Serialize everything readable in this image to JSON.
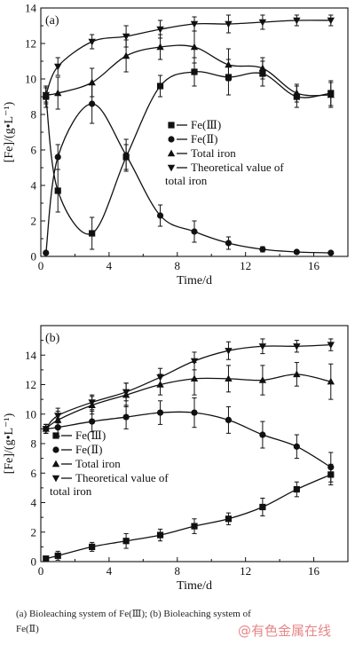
{
  "chart_data": [
    {
      "type": "line",
      "panel_label": "(a)",
      "xlabel": "Time/d",
      "ylabel": "[Fe]/(g•L⁻¹)",
      "xlim": [
        0,
        18
      ],
      "ylim": [
        0,
        14
      ],
      "xticks": [
        0,
        4,
        8,
        12,
        16
      ],
      "yticks": [
        0,
        2,
        4,
        6,
        8,
        10,
        12,
        14
      ],
      "legend_position": "center-right",
      "grid": false,
      "series": [
        {
          "name": "Fe(Ⅲ)",
          "marker": "square",
          "x": [
            0.3,
            1,
            3,
            5,
            7,
            9,
            11,
            13,
            15,
            17
          ],
          "y": [
            9.0,
            3.7,
            1.3,
            5.6,
            9.6,
            10.4,
            10.1,
            10.3,
            9.0,
            9.2
          ],
          "err": [
            0.6,
            1.2,
            0.9,
            0.7,
            0.6,
            0.8,
            1.0,
            0.7,
            0.6,
            0.7
          ]
        },
        {
          "name": "Fe(Ⅱ)",
          "marker": "circle",
          "x": [
            0.3,
            1,
            3,
            5,
            7,
            9,
            11,
            13,
            15,
            17
          ],
          "y": [
            0.2,
            5.6,
            8.6,
            5.7,
            2.3,
            1.4,
            0.75,
            0.4,
            0.25,
            0.2
          ],
          "err": [
            0.05,
            0.7,
            1.1,
            0.9,
            0.6,
            0.6,
            0.35,
            0.15,
            0.1,
            0.05
          ]
        },
        {
          "name": "Total iron",
          "marker": "triangle",
          "x": [
            0.3,
            1,
            3,
            5,
            7,
            9,
            11,
            13,
            15,
            17
          ],
          "y": [
            9.1,
            9.2,
            9.8,
            11.3,
            11.8,
            11.8,
            10.8,
            10.6,
            9.2,
            9.1
          ],
          "err": [
            0.5,
            0.9,
            0.8,
            0.9,
            0.7,
            0.9,
            0.9,
            0.6,
            0.5,
            0.7
          ]
        },
        {
          "name": "Theoretical value of total iron",
          "marker": "triangle-down",
          "x": [
            0.3,
            1,
            3,
            5,
            7,
            9,
            11,
            13,
            15,
            17
          ],
          "y": [
            9.1,
            10.7,
            12.1,
            12.4,
            12.8,
            13.1,
            13.1,
            13.2,
            13.3,
            13.3
          ],
          "err": [
            0.4,
            0.5,
            0.4,
            0.6,
            0.5,
            0.4,
            0.5,
            0.4,
            0.3,
            0.3
          ]
        }
      ]
    },
    {
      "type": "line",
      "panel_label": "(b)",
      "xlabel": "Time/d",
      "ylabel": "[Fe]/(g•L⁻¹)",
      "xlim": [
        0,
        18
      ],
      "ylim": [
        0,
        16
      ],
      "xticks": [
        0,
        4,
        8,
        12,
        16
      ],
      "yticks": [
        0,
        2,
        4,
        6,
        8,
        10,
        12,
        14
      ],
      "legend_position": "left",
      "grid": false,
      "series": [
        {
          "name": "Fe(Ⅲ)",
          "marker": "square",
          "x": [
            0.3,
            1,
            3,
            5,
            7,
            9,
            11,
            13,
            15,
            17
          ],
          "y": [
            0.2,
            0.4,
            1.0,
            1.4,
            1.8,
            2.4,
            2.9,
            3.7,
            4.9,
            5.9
          ],
          "err": [
            0.1,
            0.3,
            0.3,
            0.5,
            0.4,
            0.5,
            0.4,
            0.6,
            0.5,
            0.7
          ]
        },
        {
          "name": "Fe(Ⅱ)",
          "marker": "circle",
          "x": [
            0.3,
            1,
            3,
            5,
            7,
            9,
            11,
            13,
            15,
            17
          ],
          "y": [
            9.0,
            9.1,
            9.5,
            9.8,
            10.1,
            10.1,
            9.6,
            8.6,
            7.8,
            6.4
          ],
          "err": [
            0.3,
            0.6,
            0.7,
            0.8,
            0.8,
            1.0,
            0.9,
            0.9,
            0.8,
            1.0
          ]
        },
        {
          "name": "Total iron",
          "marker": "triangle",
          "x": [
            0.3,
            1,
            3,
            5,
            7,
            9,
            11,
            13,
            15,
            17
          ],
          "y": [
            9.0,
            9.6,
            10.6,
            11.3,
            12.0,
            12.4,
            12.4,
            12.3,
            12.7,
            12.2
          ],
          "err": [
            0.3,
            0.6,
            0.6,
            0.8,
            0.7,
            1.1,
            0.9,
            1.0,
            0.8,
            1.2
          ]
        },
        {
          "name": "Theoretical value of total iron",
          "marker": "triangle-down",
          "x": [
            0.3,
            1,
            3,
            5,
            7,
            9,
            11,
            13,
            15,
            17
          ],
          "y": [
            9.0,
            9.9,
            10.8,
            11.5,
            12.5,
            13.6,
            14.3,
            14.6,
            14.6,
            14.7
          ],
          "err": [
            0.3,
            0.5,
            0.5,
            0.6,
            0.6,
            0.6,
            0.6,
            0.5,
            0.4,
            0.4
          ]
        }
      ]
    }
  ],
  "caption": {
    "line1": "(a) Bioleaching system of Fe(Ⅲ); (b) Bioleaching system of",
    "line2": "Fe(Ⅱ)"
  },
  "watermark": "@有色金属在线"
}
